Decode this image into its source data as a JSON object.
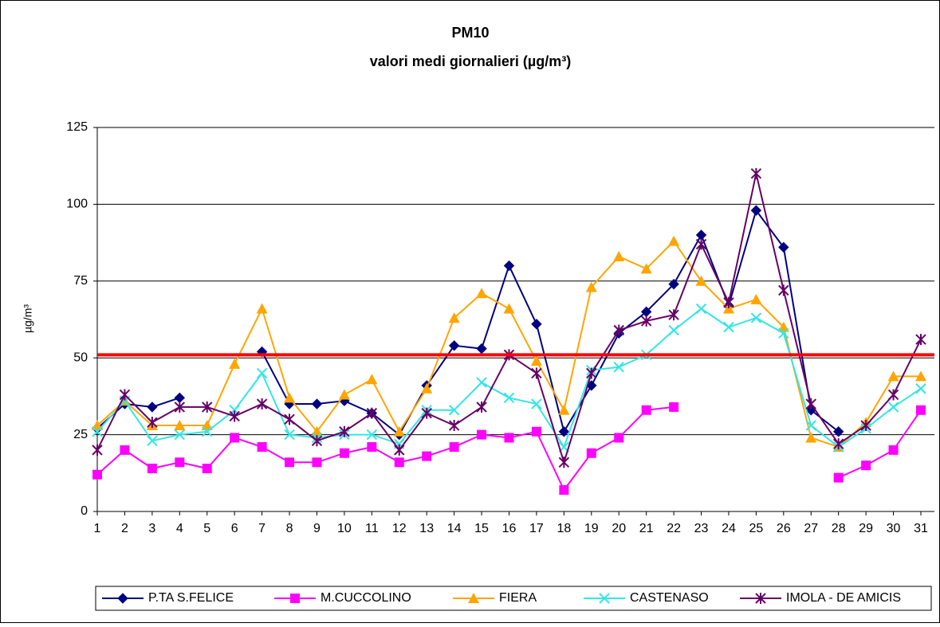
{
  "chart_data": {
    "type": "line",
    "title": "PM10",
    "subtitle": "valori medi giornalieri (µg/m³)",
    "y_label": "µg/m³",
    "categories": [
      "1",
      "2",
      "3",
      "4",
      "5",
      "6",
      "7",
      "8",
      "9",
      "10",
      "11",
      "12",
      "13",
      "14",
      "15",
      "16",
      "17",
      "18",
      "19",
      "20",
      "21",
      "22",
      "23",
      "24",
      "25",
      "26",
      "27",
      "28",
      "29",
      "30",
      "31"
    ],
    "ylim": [
      0,
      125
    ],
    "yticks": [
      0,
      25,
      50,
      75,
      100,
      125
    ],
    "grid": true,
    "reference_line": {
      "value": 51,
      "color": "#ff0000"
    },
    "legend": "bottom",
    "series": [
      {
        "name": "P.TA S.FELICE",
        "color": "#000080",
        "marker": "diamond",
        "values": [
          27,
          35,
          34,
          37,
          null,
          null,
          52,
          35,
          35,
          36,
          32,
          25,
          41,
          54,
          53,
          80,
          61,
          26,
          41,
          58,
          65,
          74,
          90,
          67,
          98,
          86,
          33,
          26,
          null,
          null,
          null
        ]
      },
      {
        "name": "M.CUCCOLINO",
        "color": "#ff00ff",
        "marker": "square",
        "values": [
          12,
          20,
          14,
          16,
          14,
          24,
          21,
          16,
          16,
          19,
          21,
          16,
          18,
          21,
          25,
          24,
          26,
          7,
          19,
          24,
          33,
          34,
          null,
          null,
          null,
          null,
          null,
          11,
          15,
          20,
          33
        ]
      },
      {
        "name": "FIERA",
        "color": "#ffa500",
        "marker": "triangle",
        "values": [
          28,
          36,
          28,
          28,
          28,
          48,
          66,
          37,
          26,
          38,
          43,
          26,
          40,
          63,
          71,
          66,
          49,
          33,
          73,
          83,
          79,
          88,
          75,
          66,
          69,
          60,
          24,
          21,
          29,
          44,
          44
        ]
      },
      {
        "name": "CASTENASO",
        "color": "#33e6e6",
        "marker": "x",
        "values": [
          26,
          36,
          23,
          25,
          26,
          33,
          45,
          25,
          24,
          25,
          25,
          22,
          33,
          33,
          42,
          37,
          35,
          21,
          46,
          47,
          51,
          59,
          66,
          60,
          63,
          58,
          28,
          21,
          27,
          34,
          40
        ]
      },
      {
        "name": "IMOLA - DE AMICIS",
        "color": "#660066",
        "marker": "star",
        "values": [
          20,
          38,
          29,
          34,
          34,
          31,
          35,
          30,
          23,
          26,
          32,
          20,
          32,
          28,
          34,
          51,
          45,
          16,
          45,
          59,
          62,
          64,
          87,
          68,
          110,
          72,
          35,
          22,
          28,
          38,
          56
        ]
      }
    ]
  }
}
